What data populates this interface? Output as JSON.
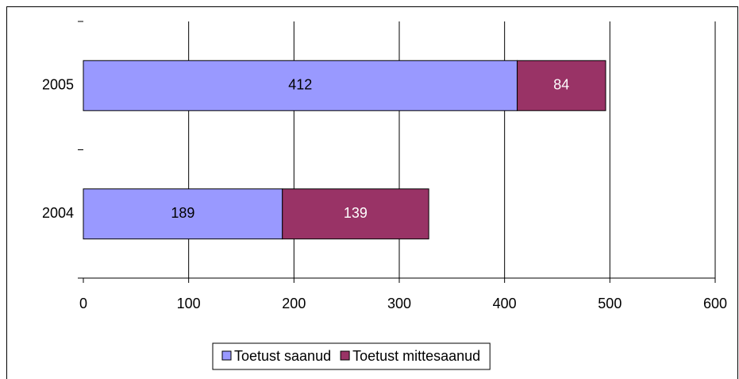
{
  "chart_data": {
    "type": "stacked_barh",
    "categories": [
      "2004",
      "2005"
    ],
    "series": [
      {
        "name": "Toetust saanud",
        "color": "#9999ff",
        "values": [
          189,
          412
        ]
      },
      {
        "name": "Toetust mittesaanud",
        "color": "#993366",
        "values": [
          139,
          84
        ]
      }
    ],
    "xlim": [
      0,
      600
    ],
    "xticks": [
      0,
      100,
      200,
      300,
      400,
      500,
      600
    ],
    "grid": true,
    "legend": "bottom"
  }
}
